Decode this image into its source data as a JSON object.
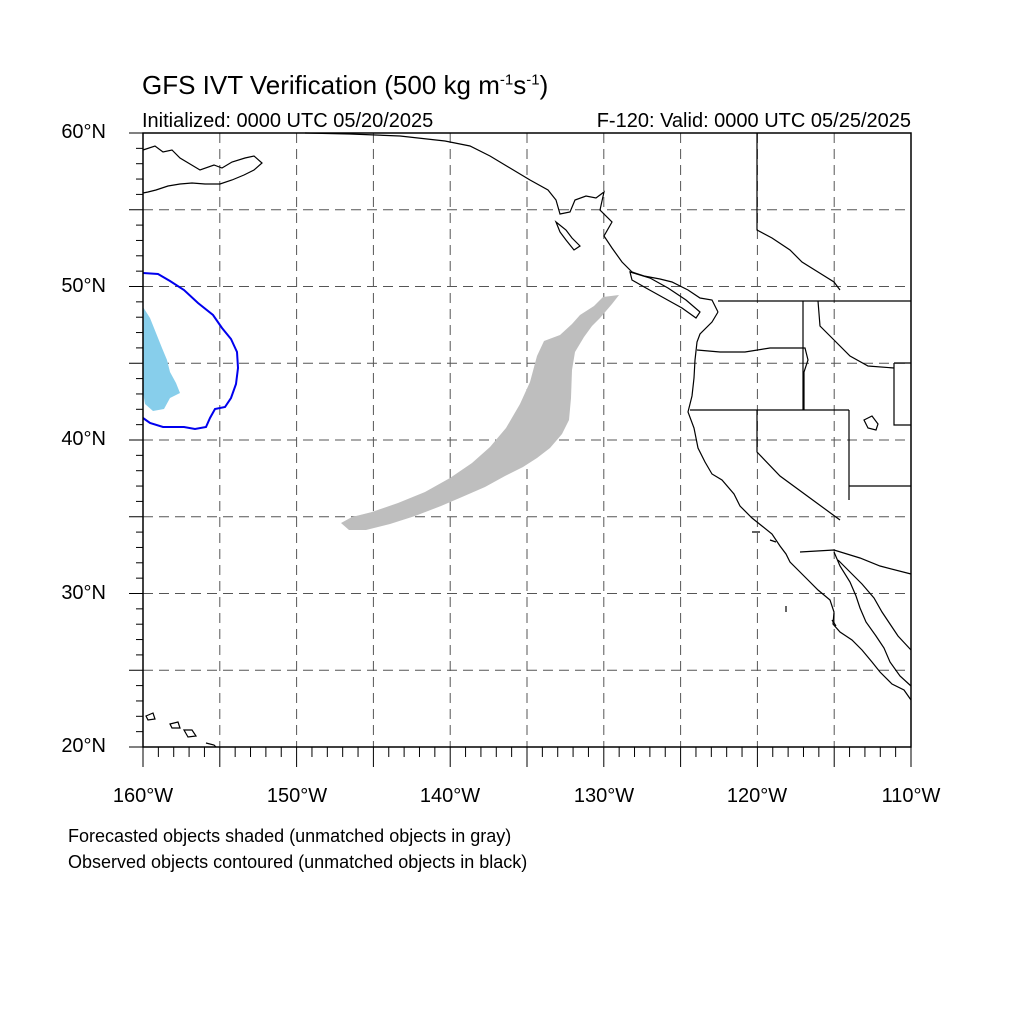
{
  "title": {
    "main": "GFS IVT Verification (500 kg m",
    "exp1": "-1",
    "mid": "s",
    "exp2": "-1",
    "end": ")"
  },
  "subtitle": {
    "initialized": "Initialized: 0000 UTC 05/20/2025",
    "valid": "F-120: Valid: 0000 UTC 05/25/2025"
  },
  "map": {
    "lon_range": [
      -160,
      -110
    ],
    "lat_range": [
      20,
      60
    ],
    "lat_labels": [
      "60°N",
      "50°N",
      "40°N",
      "30°N",
      "20°N"
    ],
    "lon_labels": [
      "160°W",
      "150°W",
      "140°W",
      "130°W",
      "120°W",
      "110°W"
    ],
    "grid": "dashed every 5°",
    "colors": {
      "forecast_matched": "#87CEEB",
      "forecast_unmatched": "#BEBEBE",
      "observed_matched": "#0000EE",
      "coastline": "#000000"
    }
  },
  "notes": {
    "line1": "Forecasted objects shaded (unmatched objects in gray)",
    "line2": "Observed objects contoured (unmatched objects in black)"
  }
}
